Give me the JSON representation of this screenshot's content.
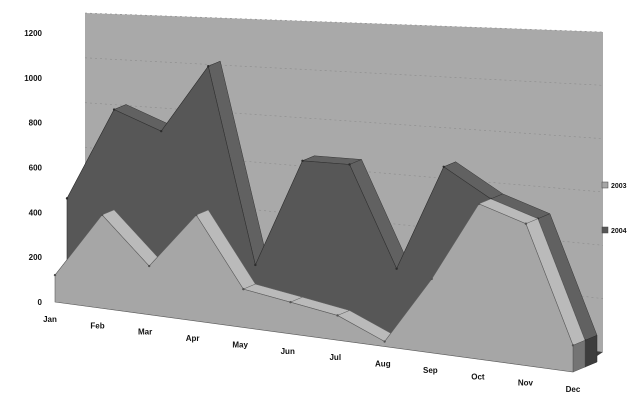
{
  "chart_data": {
    "type": "area",
    "three_d": true,
    "categories": [
      "Jan",
      "Feb",
      "Mar",
      "Apr",
      "May",
      "Jun",
      "Jul",
      "Aug",
      "Sep",
      "Oct",
      "Nov",
      "Dec"
    ],
    "series": [
      {
        "name": "2003",
        "values": [
          120,
          410,
          210,
          450,
          160,
          130,
          100,
          20,
          290,
          600,
          540,
          100
        ],
        "color": "#a6a6a6"
      },
      {
        "name": "2004",
        "values": [
          440,
          850,
          770,
          1060,
          240,
          690,
          690,
          290,
          710,
          600,
          540,
          100
        ],
        "color": "#575757"
      }
    ],
    "title": "",
    "xlabel": "",
    "ylabel": "",
    "ylim": [
      0,
      1200
    ],
    "yticks": [
      "0",
      "200",
      "400",
      "600",
      "800",
      "1000",
      "1200"
    ],
    "grid": true,
    "legend_position": "right",
    "colors": {
      "wall": "#a9a9a9",
      "floor": "#3c3c3c",
      "gridline": "#8c8c8c"
    }
  }
}
